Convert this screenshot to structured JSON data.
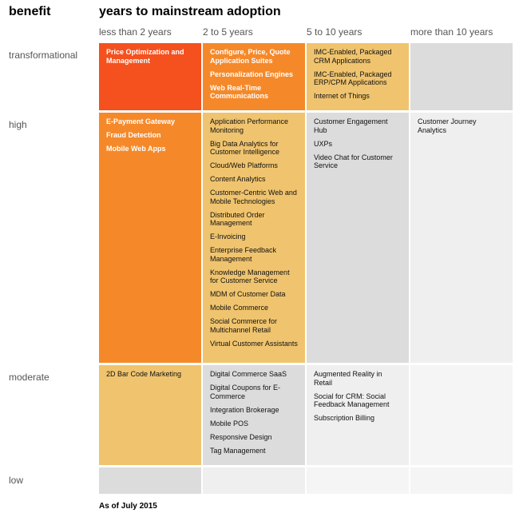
{
  "header": {
    "benefit": "benefit",
    "years": "years to mainstream adoption"
  },
  "columns": [
    "less than 2 years",
    "2 to 5 years",
    "5 to 10 years",
    "more than 10 years"
  ],
  "rows": [
    "transformational",
    "high",
    "moderate",
    "low"
  ],
  "colors": {
    "red": "#f4511e",
    "orange": "#f5892a",
    "yellow": "#f0c46e",
    "gray": "#dcdcdc",
    "light": "#efefef",
    "lighter": "#f5f5f5"
  },
  "cells": {
    "transformational": {
      "lt2": [
        "Price Optimization and Management"
      ],
      "2to5": [
        "Configure, Price, Quote Application Suites",
        "Personalization Engines",
        "Web Real-Time Communications"
      ],
      "5to10": [
        "IMC-Enabled, Packaged CRM Applications",
        "IMC-Enabled, Packaged ERP/CPM Applications",
        "Internet of Things"
      ],
      "gt10": []
    },
    "high": {
      "lt2": [
        "E-Payment Gateway",
        "Fraud Detection",
        "Mobile Web Apps"
      ],
      "2to5": [
        "Application Performance Monitoring",
        "Big Data Analytics for Customer Intelligence",
        "Cloud/Web Platforms",
        "Content Analytics",
        "Customer-Centric Web and Mobile Technologies",
        "Distributed Order Management",
        "E-Invoicing",
        "Enterprise Feedback Management",
        "Knowledge Management for Customer Service",
        "MDM of Customer Data",
        "Mobile Commerce",
        "Social Commerce for Multichannel Retail",
        "Virtual Customer Assistants"
      ],
      "5to10": [
        "Customer Engagement Hub",
        "UXPs",
        "Video Chat for Customer Service"
      ],
      "gt10": [
        "Customer Journey Analytics"
      ]
    },
    "moderate": {
      "lt2": [
        "2D Bar Code Marketing"
      ],
      "2to5": [
        "Digital Commerce SaaS",
        "Digital Coupons for E-Commerce",
        "Integration Brokerage",
        "Mobile POS",
        "Responsive Design",
        "Tag Management"
      ],
      "5to10": [
        "Augmented Reality in Retail",
        "Social for CRM: Social Feedback Management",
        "Subscription Billing"
      ],
      "gt10": []
    },
    "low": {
      "lt2": [],
      "2to5": [],
      "5to10": [],
      "gt10": []
    }
  },
  "footer": "As of July 2015"
}
